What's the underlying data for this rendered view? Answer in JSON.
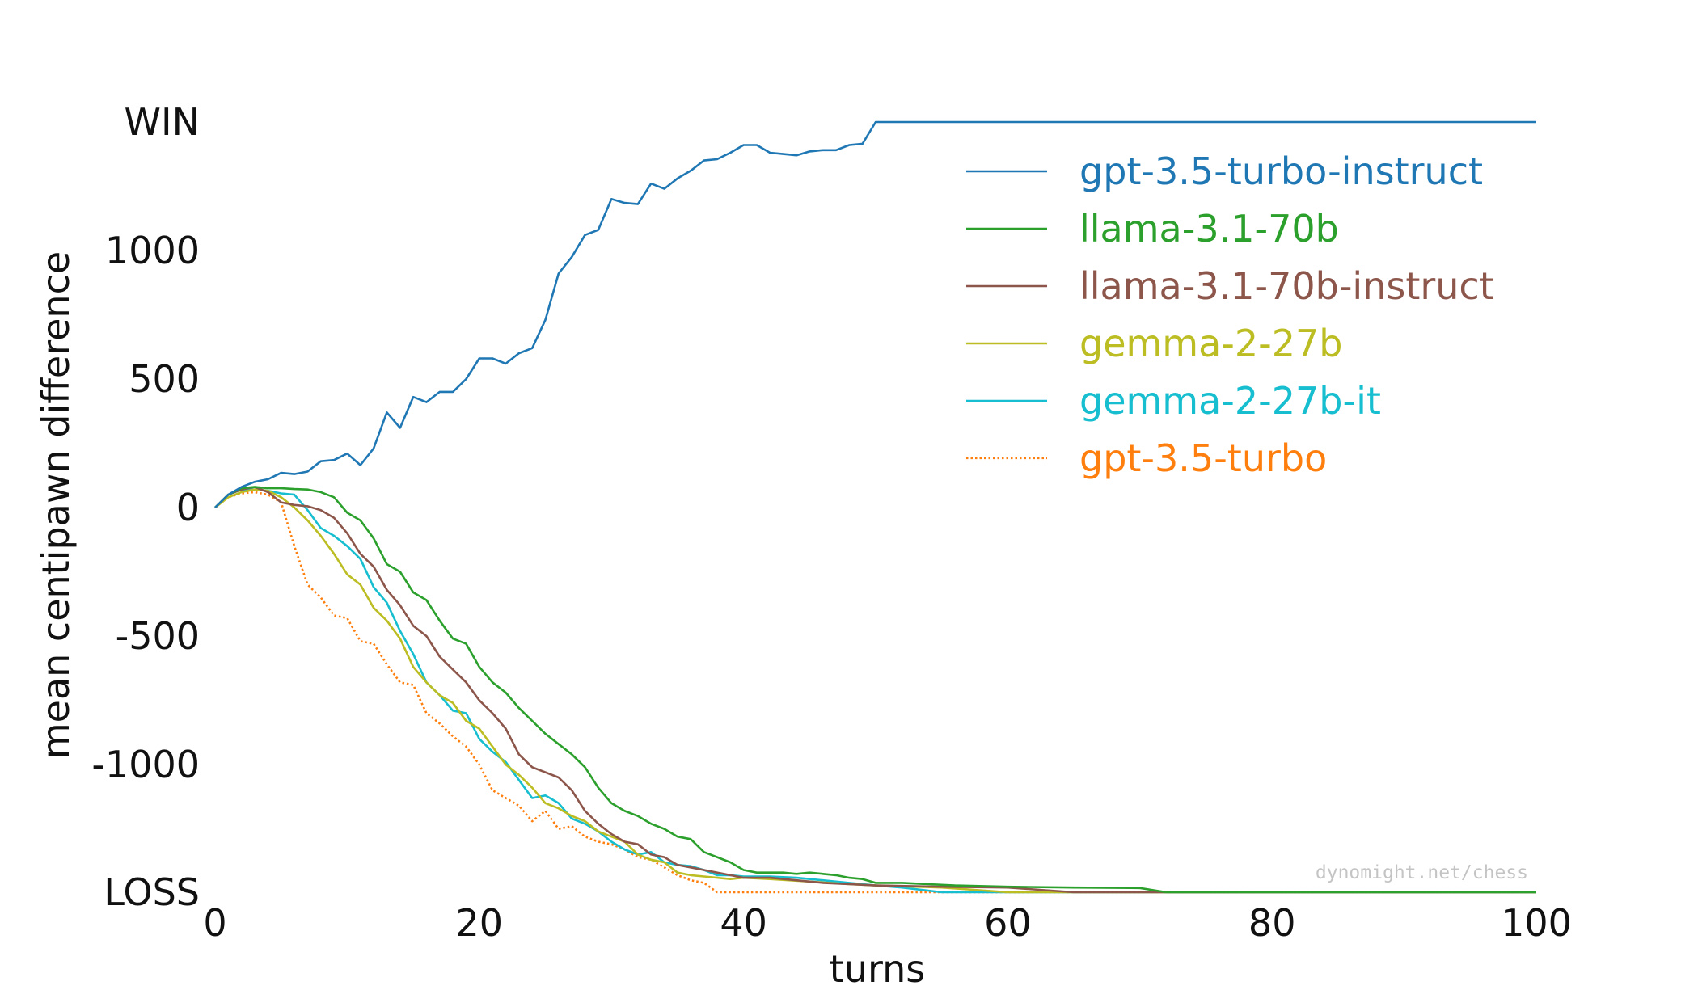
{
  "chart_data": {
    "type": "line",
    "xlabel": "turns",
    "ylabel": "mean centipawn difference",
    "xlim": [
      0,
      100
    ],
    "ylim": [
      "LOSS",
      "WIN"
    ],
    "x_ticks": [
      "0",
      "20",
      "40",
      "60",
      "80",
      "100"
    ],
    "y_ticks": [
      "WIN",
      "1000",
      "500",
      "0",
      "-500",
      "-1000",
      "LOSS"
    ],
    "grid": false,
    "legend_position": "top-right",
    "credit": "dynomight.net/chess",
    "series": [
      {
        "name": "gpt-3.5-turbo-instruct",
        "color": "#1f77b4",
        "style": "solid",
        "points": [
          [
            0,
            0
          ],
          [
            1,
            50
          ],
          [
            2,
            80
          ],
          [
            3,
            100
          ],
          [
            4,
            110
          ],
          [
            5,
            135
          ],
          [
            6,
            130
          ],
          [
            7,
            140
          ],
          [
            8,
            180
          ],
          [
            9,
            185
          ],
          [
            10,
            210
          ],
          [
            11,
            165
          ],
          [
            12,
            230
          ],
          [
            13,
            370
          ],
          [
            14,
            310
          ],
          [
            15,
            430
          ],
          [
            16,
            410
          ],
          [
            17,
            450
          ],
          [
            18,
            450
          ],
          [
            19,
            500
          ],
          [
            20,
            580
          ],
          [
            21,
            580
          ],
          [
            22,
            560
          ],
          [
            23,
            600
          ],
          [
            24,
            620
          ],
          [
            25,
            730
          ],
          [
            26,
            910
          ],
          [
            27,
            975
          ],
          [
            28,
            1060
          ],
          [
            29,
            1080
          ],
          [
            30,
            1200
          ],
          [
            31,
            1185
          ],
          [
            32,
            1180
          ],
          [
            33,
            1260
          ],
          [
            34,
            1240
          ],
          [
            35,
            1280
          ],
          [
            36,
            1310
          ],
          [
            37,
            1350
          ],
          [
            38,
            1355
          ],
          [
            39,
            1380
          ],
          [
            40,
            1410
          ],
          [
            41,
            1410
          ],
          [
            42,
            1380
          ],
          [
            43,
            1375
          ],
          [
            44,
            1370
          ],
          [
            45,
            1385
          ],
          [
            46,
            1390
          ],
          [
            47,
            1390
          ],
          [
            48,
            1410
          ],
          [
            49,
            1415
          ],
          [
            50,
            "WIN"
          ],
          [
            100,
            "WIN"
          ]
        ]
      },
      {
        "name": "llama-3.1-70b",
        "color": "#2ca02c",
        "style": "solid",
        "points": [
          [
            0,
            0
          ],
          [
            1,
            50
          ],
          [
            2,
            75
          ],
          [
            3,
            80
          ],
          [
            4,
            75
          ],
          [
            5,
            75
          ],
          [
            6,
            72
          ],
          [
            7,
            70
          ],
          [
            8,
            60
          ],
          [
            9,
            40
          ],
          [
            10,
            -20
          ],
          [
            11,
            -50
          ],
          [
            12,
            -120
          ],
          [
            13,
            -220
          ],
          [
            14,
            -250
          ],
          [
            15,
            -330
          ],
          [
            16,
            -360
          ],
          [
            17,
            -440
          ],
          [
            18,
            -510
          ],
          [
            19,
            -530
          ],
          [
            20,
            -620
          ],
          [
            21,
            -680
          ],
          [
            22,
            -720
          ],
          [
            23,
            -780
          ],
          [
            24,
            -830
          ],
          [
            25,
            -880
          ],
          [
            26,
            -920
          ],
          [
            27,
            -960
          ],
          [
            28,
            -1010
          ],
          [
            29,
            -1090
          ],
          [
            30,
            -1150
          ],
          [
            31,
            -1180
          ],
          [
            32,
            -1200
          ],
          [
            33,
            -1230
          ],
          [
            34,
            -1250
          ],
          [
            35,
            -1280
          ],
          [
            36,
            -1290
          ],
          [
            37,
            -1340
          ],
          [
            38,
            -1360
          ],
          [
            39,
            -1380
          ],
          [
            40,
            -1410
          ],
          [
            41,
            -1420
          ],
          [
            42,
            -1420
          ],
          [
            43,
            -1420
          ],
          [
            44,
            -1425
          ],
          [
            45,
            -1420
          ],
          [
            46,
            -1425
          ],
          [
            47,
            -1430
          ],
          [
            48,
            -1440
          ],
          [
            49,
            -1445
          ],
          [
            50,
            -1460
          ],
          [
            52,
            -1460
          ],
          [
            54,
            -1465
          ],
          [
            56,
            -1470
          ],
          [
            60,
            -1475
          ],
          [
            65,
            -1478
          ],
          [
            70,
            -1480
          ],
          [
            72,
            "LOSS"
          ],
          [
            100,
            "LOSS"
          ]
        ]
      },
      {
        "name": "llama-3.1-70b-instruct",
        "color": "#8c564b",
        "style": "solid",
        "points": [
          [
            0,
            0
          ],
          [
            1,
            50
          ],
          [
            2,
            70
          ],
          [
            3,
            80
          ],
          [
            4,
            60
          ],
          [
            5,
            20
          ],
          [
            6,
            10
          ],
          [
            7,
            5
          ],
          [
            8,
            -10
          ],
          [
            9,
            -40
          ],
          [
            10,
            -100
          ],
          [
            11,
            -180
          ],
          [
            12,
            -230
          ],
          [
            13,
            -320
          ],
          [
            14,
            -380
          ],
          [
            15,
            -460
          ],
          [
            16,
            -500
          ],
          [
            17,
            -580
          ],
          [
            18,
            -630
          ],
          [
            19,
            -680
          ],
          [
            20,
            -750
          ],
          [
            21,
            -800
          ],
          [
            22,
            -860
          ],
          [
            23,
            -960
          ],
          [
            24,
            -1010
          ],
          [
            25,
            -1030
          ],
          [
            26,
            -1050
          ],
          [
            27,
            -1100
          ],
          [
            28,
            -1180
          ],
          [
            29,
            -1230
          ],
          [
            30,
            -1270
          ],
          [
            31,
            -1300
          ],
          [
            32,
            -1310
          ],
          [
            33,
            -1350
          ],
          [
            34,
            -1360
          ],
          [
            35,
            -1390
          ],
          [
            36,
            -1400
          ],
          [
            37,
            -1410
          ],
          [
            38,
            -1420
          ],
          [
            39,
            -1430
          ],
          [
            40,
            -1440
          ],
          [
            42,
            -1440
          ],
          [
            44,
            -1450
          ],
          [
            46,
            -1460
          ],
          [
            48,
            -1465
          ],
          [
            50,
            -1470
          ],
          [
            55,
            -1475
          ],
          [
            60,
            -1478
          ],
          [
            65,
            "LOSS"
          ],
          [
            100,
            "LOSS"
          ]
        ]
      },
      {
        "name": "gemma-2-27b",
        "color": "#bcbd22",
        "style": "solid",
        "points": [
          [
            0,
            0
          ],
          [
            1,
            40
          ],
          [
            2,
            60
          ],
          [
            3,
            70
          ],
          [
            4,
            65
          ],
          [
            5,
            40
          ],
          [
            6,
            0
          ],
          [
            7,
            -50
          ],
          [
            8,
            -110
          ],
          [
            9,
            -180
          ],
          [
            10,
            -260
          ],
          [
            11,
            -300
          ],
          [
            12,
            -390
          ],
          [
            13,
            -440
          ],
          [
            14,
            -510
          ],
          [
            15,
            -620
          ],
          [
            16,
            -680
          ],
          [
            17,
            -730
          ],
          [
            18,
            -760
          ],
          [
            19,
            -830
          ],
          [
            20,
            -860
          ],
          [
            21,
            -930
          ],
          [
            22,
            -1000
          ],
          [
            23,
            -1040
          ],
          [
            24,
            -1090
          ],
          [
            25,
            -1150
          ],
          [
            26,
            -1170
          ],
          [
            27,
            -1200
          ],
          [
            28,
            -1220
          ],
          [
            29,
            -1260
          ],
          [
            30,
            -1280
          ],
          [
            31,
            -1300
          ],
          [
            32,
            -1350
          ],
          [
            33,
            -1370
          ],
          [
            34,
            -1380
          ],
          [
            35,
            -1420
          ],
          [
            36,
            -1430
          ],
          [
            37,
            -1435
          ],
          [
            38,
            -1440
          ],
          [
            39,
            -1445
          ],
          [
            40,
            -1440
          ],
          [
            42,
            -1445
          ],
          [
            45,
            -1455
          ],
          [
            48,
            -1465
          ],
          [
            50,
            -1470
          ],
          [
            55,
            -1478
          ],
          [
            60,
            "LOSS"
          ],
          [
            100,
            "LOSS"
          ]
        ]
      },
      {
        "name": "gemma-2-27b-it",
        "color": "#17becf",
        "style": "solid",
        "points": [
          [
            0,
            0
          ],
          [
            1,
            50
          ],
          [
            2,
            70
          ],
          [
            3,
            70
          ],
          [
            4,
            65
          ],
          [
            5,
            55
          ],
          [
            6,
            50
          ],
          [
            7,
            -10
          ],
          [
            8,
            -80
          ],
          [
            9,
            -110
          ],
          [
            10,
            -150
          ],
          [
            11,
            -200
          ],
          [
            12,
            -310
          ],
          [
            13,
            -370
          ],
          [
            14,
            -480
          ],
          [
            15,
            -570
          ],
          [
            16,
            -680
          ],
          [
            17,
            -730
          ],
          [
            18,
            -790
          ],
          [
            19,
            -800
          ],
          [
            20,
            -900
          ],
          [
            21,
            -950
          ],
          [
            22,
            -990
          ],
          [
            23,
            -1060
          ],
          [
            24,
            -1130
          ],
          [
            25,
            -1120
          ],
          [
            26,
            -1150
          ],
          [
            27,
            -1210
          ],
          [
            28,
            -1230
          ],
          [
            29,
            -1260
          ],
          [
            30,
            -1300
          ],
          [
            31,
            -1330
          ],
          [
            32,
            -1350
          ],
          [
            33,
            -1340
          ],
          [
            34,
            -1380
          ],
          [
            35,
            -1390
          ],
          [
            36,
            -1395
          ],
          [
            37,
            -1410
          ],
          [
            38,
            -1430
          ],
          [
            39,
            -1430
          ],
          [
            40,
            -1435
          ],
          [
            42,
            -1435
          ],
          [
            44,
            -1440
          ],
          [
            46,
            -1450
          ],
          [
            48,
            -1460
          ],
          [
            50,
            -1470
          ],
          [
            52,
            -1478
          ],
          [
            55,
            "LOSS"
          ],
          [
            100,
            "LOSS"
          ]
        ]
      },
      {
        "name": "gpt-3.5-turbo",
        "color": "#ff7f0e",
        "style": "dotted",
        "points": [
          [
            0,
            0
          ],
          [
            1,
            40
          ],
          [
            2,
            55
          ],
          [
            3,
            60
          ],
          [
            4,
            50
          ],
          [
            5,
            20
          ],
          [
            6,
            -150
          ],
          [
            7,
            -300
          ],
          [
            8,
            -350
          ],
          [
            9,
            -420
          ],
          [
            10,
            -430
          ],
          [
            11,
            -520
          ],
          [
            12,
            -530
          ],
          [
            13,
            -610
          ],
          [
            14,
            -680
          ],
          [
            15,
            -690
          ],
          [
            16,
            -800
          ],
          [
            17,
            -840
          ],
          [
            18,
            -890
          ],
          [
            19,
            -930
          ],
          [
            20,
            -1000
          ],
          [
            21,
            -1100
          ],
          [
            22,
            -1130
          ],
          [
            23,
            -1160
          ],
          [
            24,
            -1220
          ],
          [
            25,
            -1180
          ],
          [
            26,
            -1250
          ],
          [
            27,
            -1240
          ],
          [
            28,
            -1280
          ],
          [
            29,
            -1300
          ],
          [
            30,
            -1310
          ],
          [
            31,
            -1330
          ],
          [
            32,
            -1360
          ],
          [
            33,
            -1370
          ],
          [
            34,
            -1400
          ],
          [
            35,
            -1430
          ],
          [
            36,
            -1450
          ],
          [
            37,
            -1460
          ],
          [
            38,
            "LOSS"
          ],
          [
            100,
            "LOSS"
          ]
        ]
      }
    ]
  }
}
